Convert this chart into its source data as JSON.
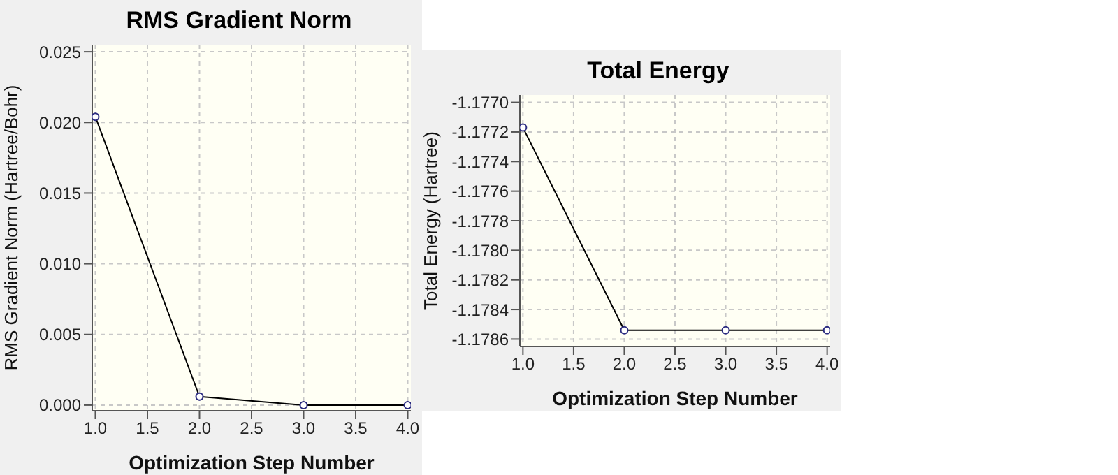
{
  "chart_data": [
    {
      "type": "line",
      "title": "RMS Gradient Norm",
      "xlabel": "Optimization Step Number",
      "ylabel": "RMS Gradient Norm (Hartree/Bohr)",
      "x": [
        1,
        2,
        3,
        4
      ],
      "series": [
        {
          "color": "#000000",
          "values": [
            0.0204,
            0.0006,
            0,
            0
          ]
        }
      ],
      "xlim": [
        0.97,
        4.03
      ],
      "xticks": [
        {
          "value": 1,
          "label": "1.0"
        },
        {
          "value": 1.5,
          "label": "1.5"
        },
        {
          "value": 2,
          "label": "2.0"
        },
        {
          "value": 2.5,
          "label": "2.5"
        },
        {
          "value": 3,
          "label": "3.0"
        },
        {
          "value": 3.5,
          "label": "3.5"
        },
        {
          "value": 4,
          "label": "4.0"
        }
      ],
      "ylim": [
        -0.0004,
        0.0255
      ],
      "yticks": [
        {
          "value": 0,
          "label": "0.000"
        },
        0.005,
        {
          "value": 0.01,
          "label": "0.010"
        },
        0.015,
        {
          "value": 0.02,
          "label": "0.020"
        },
        0.025
      ],
      "grid": true,
      "marker": "circle",
      "line_style": "solid",
      "legend": false
    },
    {
      "type": "line",
      "title": "Total Energy",
      "xlabel": "Optimization Step Number",
      "ylabel": "Total Energy (Hartree)",
      "x": [
        1,
        2,
        3,
        4
      ],
      "series": [
        {
          "color": "#000000",
          "values": [
            -1.17717,
            -1.17854,
            -1.17854,
            -1.17854
          ]
        }
      ],
      "xlim": [
        0.97,
        4.03
      ],
      "xticks": [
        {
          "value": 1,
          "label": "1.0"
        },
        {
          "value": 1.5,
          "label": "1.5"
        },
        {
          "value": 2,
          "label": "2.0"
        },
        {
          "value": 2.5,
          "label": "2.5"
        },
        {
          "value": 3,
          "label": "3.0"
        },
        {
          "value": 3.5,
          "label": "3.5"
        },
        {
          "value": 4,
          "label": "4.0"
        }
      ],
      "ylim": [
        -1.17865,
        -1.17695
      ],
      "yticks": [
        -1.1786,
        -1.1784,
        -1.1782,
        {
          "value": -1.178,
          "label": "-1.1780"
        },
        -1.1778,
        -1.1776,
        -1.1774,
        -1.1772,
        {
          "value": -1.177,
          "label": "-1.1770"
        }
      ],
      "grid": true,
      "marker": "circle",
      "line_style": "solid",
      "legend": false
    }
  ]
}
